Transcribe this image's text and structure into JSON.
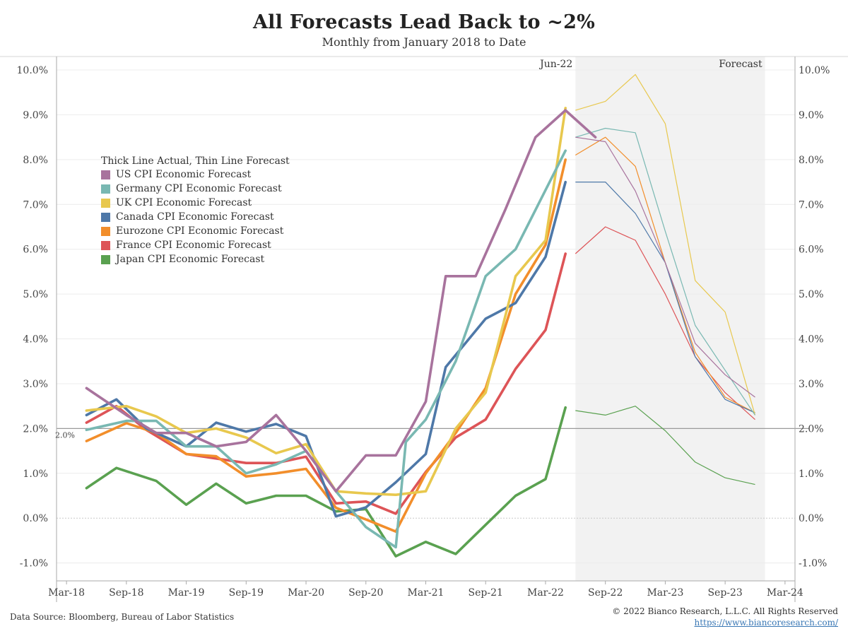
{
  "chart_data": {
    "type": "line",
    "title": "All Forecasts Lead Back to ~2%",
    "subtitle": "Monthly from January 2018 to Date",
    "x_ticks": [
      "Mar-18",
      "Sep-18",
      "Mar-19",
      "Sep-19",
      "Mar-20",
      "Sep-20",
      "Mar-21",
      "Sep-21",
      "Mar-22",
      "Sep-22",
      "Mar-23",
      "Sep-23",
      "Mar-24"
    ],
    "y_ticks": [
      "-1.0%",
      "0.0%",
      "1.0%",
      "2.0%",
      "3.0%",
      "4.0%",
      "5.0%",
      "6.0%",
      "7.0%",
      "8.0%",
      "9.0%",
      "10.0%"
    ],
    "ylim": [
      -1.4,
      10.3
    ],
    "y_unit": "%",
    "x_range": [
      "2018-02",
      "2024-04"
    ],
    "reference_line": {
      "value": 2.0,
      "label": "2.0%"
    },
    "annotations": {
      "actual_end": "Jun-22",
      "forecast": "Forecast"
    },
    "forecast_region": {
      "start": "2022-06",
      "end": "2024-01"
    },
    "legend": {
      "title": "Thick Line Actual, Thin Line Forecast",
      "placement": "upper-left"
    },
    "series": [
      {
        "name": "US CPI Economic Forecast",
        "color": "#a8739d",
        "actual": [
          [
            "2018-05",
            2.9
          ],
          [
            "2018-09",
            2.3
          ],
          [
            "2018-12",
            1.9
          ],
          [
            "2019-03",
            1.9
          ],
          [
            "2019-06",
            1.6
          ],
          [
            "2019-09",
            1.7
          ],
          [
            "2019-12",
            2.3
          ],
          [
            "2020-03",
            1.5
          ],
          [
            "2020-06",
            0.6
          ],
          [
            "2020-09",
            1.4
          ],
          [
            "2020-12",
            1.4
          ],
          [
            "2021-03",
            2.6
          ],
          [
            "2021-05",
            5.4
          ],
          [
            "2021-08",
            5.4
          ],
          [
            "2021-11",
            6.9
          ],
          [
            "2022-02",
            8.5
          ],
          [
            "2022-05",
            9.1
          ],
          [
            "2022-08",
            8.5
          ]
        ],
        "forecast": [
          [
            "2022-06",
            8.5
          ],
          [
            "2022-09",
            8.4
          ],
          [
            "2022-12",
            7.3
          ],
          [
            "2023-03",
            5.7
          ],
          [
            "2023-06",
            3.9
          ],
          [
            "2023-09",
            3.2
          ],
          [
            "2023-12",
            2.7
          ]
        ]
      },
      {
        "name": "Germany CPI Economic Forecast",
        "color": "#79b8b2",
        "actual": [
          [
            "2018-05",
            1.97
          ],
          [
            "2018-09",
            2.17
          ],
          [
            "2018-12",
            2.17
          ],
          [
            "2019-03",
            1.6
          ],
          [
            "2019-06",
            1.6
          ],
          [
            "2019-09",
            1.0
          ],
          [
            "2019-12",
            1.2
          ],
          [
            "2020-03",
            1.5
          ],
          [
            "2020-06",
            0.6
          ],
          [
            "2020-09",
            -0.2
          ],
          [
            "2020-12",
            -0.65
          ],
          [
            "2021-01",
            1.7
          ],
          [
            "2021-03",
            2.2
          ],
          [
            "2021-06",
            3.5
          ],
          [
            "2021-09",
            5.4
          ],
          [
            "2021-12",
            6.0
          ],
          [
            "2022-05",
            8.2
          ]
        ],
        "forecast": [
          [
            "2022-06",
            8.5
          ],
          [
            "2022-09",
            8.7
          ],
          [
            "2022-12",
            8.6
          ],
          [
            "2023-03",
            6.4
          ],
          [
            "2023-06",
            4.3
          ],
          [
            "2023-09",
            3.3
          ],
          [
            "2023-12",
            2.3
          ]
        ]
      },
      {
        "name": "UK CPI Economic Forecast",
        "color": "#e8c84e",
        "actual": [
          [
            "2018-05",
            2.4
          ],
          [
            "2018-09",
            2.5
          ],
          [
            "2018-12",
            2.27
          ],
          [
            "2019-03",
            1.9
          ],
          [
            "2019-06",
            2.0
          ],
          [
            "2019-09",
            1.8
          ],
          [
            "2019-12",
            1.45
          ],
          [
            "2020-03",
            1.65
          ],
          [
            "2020-06",
            0.6
          ],
          [
            "2020-09",
            0.55
          ],
          [
            "2020-12",
            0.52
          ],
          [
            "2021-03",
            0.6
          ],
          [
            "2021-06",
            2.0
          ],
          [
            "2021-09",
            2.8
          ],
          [
            "2021-12",
            5.4
          ],
          [
            "2022-03",
            6.2
          ],
          [
            "2022-05",
            9.15
          ]
        ],
        "forecast": [
          [
            "2022-06",
            9.1
          ],
          [
            "2022-09",
            9.3
          ],
          [
            "2022-12",
            9.9
          ],
          [
            "2023-03",
            8.8
          ],
          [
            "2023-06",
            5.3
          ],
          [
            "2023-09",
            4.6
          ],
          [
            "2023-12",
            2.3
          ]
        ]
      },
      {
        "name": "Canada CPI Economic Forecast",
        "color": "#4e78a8",
        "actual": [
          [
            "2018-05",
            2.3
          ],
          [
            "2018-08",
            2.65
          ],
          [
            "2018-11",
            2.0
          ],
          [
            "2019-03",
            1.6
          ],
          [
            "2019-06",
            2.13
          ],
          [
            "2019-09",
            1.93
          ],
          [
            "2019-12",
            2.1
          ],
          [
            "2020-03",
            1.83
          ],
          [
            "2020-06",
            0.04
          ],
          [
            "2020-09",
            0.24
          ],
          [
            "2020-12",
            0.8
          ],
          [
            "2021-03",
            1.43
          ],
          [
            "2021-05",
            3.37
          ],
          [
            "2021-09",
            4.45
          ],
          [
            "2021-12",
            4.8
          ],
          [
            "2022-03",
            5.83
          ],
          [
            "2022-05",
            7.5
          ]
        ],
        "forecast": [
          [
            "2022-06",
            7.5
          ],
          [
            "2022-09",
            7.5
          ],
          [
            "2022-12",
            6.8
          ],
          [
            "2023-03",
            5.7
          ],
          [
            "2023-06",
            3.6
          ],
          [
            "2023-09",
            2.65
          ],
          [
            "2023-12",
            2.35
          ]
        ]
      },
      {
        "name": "Eurozone CPI Economic Forecast",
        "color": "#f28e2b",
        "actual": [
          [
            "2018-05",
            1.72
          ],
          [
            "2018-09",
            2.12
          ],
          [
            "2018-12",
            1.9
          ],
          [
            "2019-03",
            1.43
          ],
          [
            "2019-06",
            1.38
          ],
          [
            "2019-09",
            0.93
          ],
          [
            "2019-12",
            1.0
          ],
          [
            "2020-03",
            1.1
          ],
          [
            "2020-06",
            0.23
          ],
          [
            "2020-09",
            -0.03
          ],
          [
            "2020-12",
            -0.3
          ],
          [
            "2021-03",
            1.0
          ],
          [
            "2021-06",
            1.9
          ],
          [
            "2021-09",
            2.9
          ],
          [
            "2021-12",
            5.0
          ],
          [
            "2022-03",
            6.1
          ],
          [
            "2022-05",
            8.0
          ]
        ],
        "forecast": [
          [
            "2022-06",
            8.1
          ],
          [
            "2022-09",
            8.5
          ],
          [
            "2022-12",
            7.85
          ],
          [
            "2023-03",
            5.7
          ],
          [
            "2023-06",
            3.7
          ],
          [
            "2023-09",
            2.7
          ],
          [
            "2023-12",
            2.35
          ]
        ]
      },
      {
        "name": "France CPI Economic Forecast",
        "color": "#dd5457",
        "actual": [
          [
            "2018-05",
            2.13
          ],
          [
            "2018-08",
            2.5
          ],
          [
            "2018-11",
            1.97
          ],
          [
            "2019-03",
            1.43
          ],
          [
            "2019-06",
            1.33
          ],
          [
            "2019-09",
            1.23
          ],
          [
            "2019-12",
            1.23
          ],
          [
            "2020-03",
            1.37
          ],
          [
            "2020-06",
            0.33
          ],
          [
            "2020-09",
            0.37
          ],
          [
            "2020-12",
            0.1
          ],
          [
            "2021-03",
            1.03
          ],
          [
            "2021-06",
            1.8
          ],
          [
            "2021-09",
            2.2
          ],
          [
            "2021-12",
            3.33
          ],
          [
            "2022-03",
            4.2
          ],
          [
            "2022-05",
            5.9
          ]
        ],
        "forecast": [
          [
            "2022-06",
            5.9
          ],
          [
            "2022-09",
            6.5
          ],
          [
            "2022-12",
            6.2
          ],
          [
            "2023-03",
            5.0
          ],
          [
            "2023-06",
            3.6
          ],
          [
            "2023-09",
            2.8
          ],
          [
            "2023-12",
            2.2
          ]
        ]
      },
      {
        "name": "Japan CPI Economic Forecast",
        "color": "#5aa150",
        "actual": [
          [
            "2018-05",
            0.67
          ],
          [
            "2018-08",
            1.12
          ],
          [
            "2018-12",
            0.83
          ],
          [
            "2019-03",
            0.3
          ],
          [
            "2019-06",
            0.77
          ],
          [
            "2019-09",
            0.33
          ],
          [
            "2019-12",
            0.5
          ],
          [
            "2020-03",
            0.5
          ],
          [
            "2020-06",
            0.15
          ],
          [
            "2020-09",
            0.2
          ],
          [
            "2020-12",
            -0.85
          ],
          [
            "2021-03",
            -0.53
          ],
          [
            "2021-06",
            -0.8
          ],
          [
            "2021-09",
            -0.15
          ],
          [
            "2021-12",
            0.5
          ],
          [
            "2022-03",
            0.87
          ],
          [
            "2022-05",
            2.47
          ]
        ],
        "forecast": [
          [
            "2022-06",
            2.4
          ],
          [
            "2022-09",
            2.3
          ],
          [
            "2022-12",
            2.5
          ],
          [
            "2023-03",
            1.95
          ],
          [
            "2023-06",
            1.25
          ],
          [
            "2023-09",
            0.9
          ],
          [
            "2023-12",
            0.75
          ]
        ]
      }
    ]
  },
  "footer": {
    "source": "Data Source: Bloomberg, Bureau of Labor Statistics",
    "copyright": "© 2022 Bianco Research, L.L.C. All Rights Reserved",
    "url": "https://www.biancoresearch.com/"
  }
}
